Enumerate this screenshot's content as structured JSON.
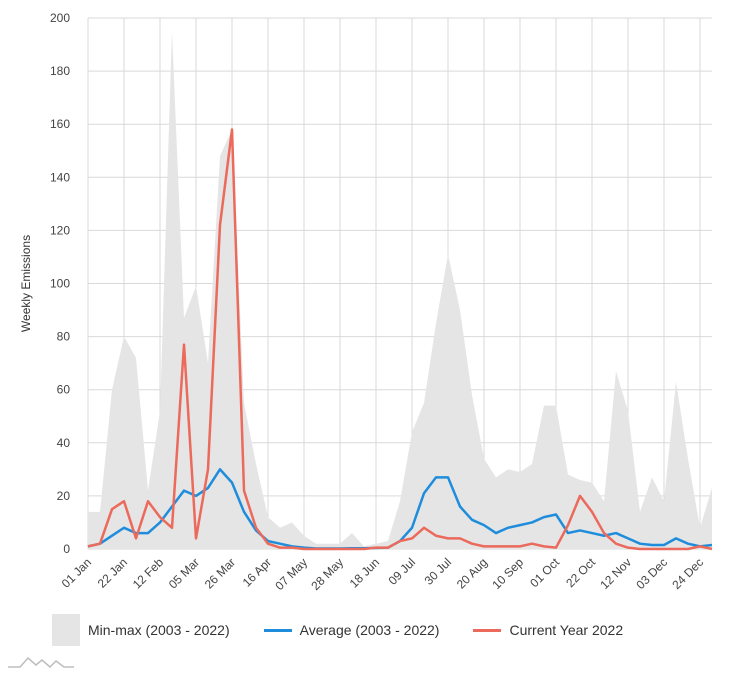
{
  "colors": {
    "range_fill": "#e5e5e5",
    "average": "#1f8ddb",
    "current": "#eb6a5c",
    "grid": "#d9d9d9"
  },
  "legend": {
    "range_label": "Min-max (2003 - 2022)",
    "average_label": "Average (2003 - 2022)",
    "current_label": "Current Year 2022"
  },
  "chart_data": {
    "type": "line",
    "title": "",
    "xlabel": "",
    "ylabel": "Weekly Emissions",
    "ylim": [
      0,
      200
    ],
    "yticks": [
      0,
      20,
      40,
      60,
      80,
      100,
      120,
      140,
      160,
      180,
      200
    ],
    "grid": true,
    "week_count": 52,
    "x_tick_labels": [
      {
        "week": 0,
        "label": "01 Jan"
      },
      {
        "week": 3,
        "label": "22 Jan"
      },
      {
        "week": 6,
        "label": "12 Feb"
      },
      {
        "week": 9,
        "label": "05 Mar"
      },
      {
        "week": 12,
        "label": "26 Mar"
      },
      {
        "week": 15,
        "label": "16 Apr"
      },
      {
        "week": 18,
        "label": "07 May"
      },
      {
        "week": 21,
        "label": "28 May"
      },
      {
        "week": 24,
        "label": "18 Jun"
      },
      {
        "week": 27,
        "label": "09 Jul"
      },
      {
        "week": 30,
        "label": "30 Jul"
      },
      {
        "week": 33,
        "label": "20 Aug"
      },
      {
        "week": 36,
        "label": "10 Sep"
      },
      {
        "week": 39,
        "label": "01 Oct"
      },
      {
        "week": 42,
        "label": "22 Oct"
      },
      {
        "week": 45,
        "label": "12 Nov"
      },
      {
        "week": 48,
        "label": "03 Dec"
      },
      {
        "week": 51,
        "label": "24 Dec"
      }
    ],
    "series": [
      {
        "name": "Min-max (2003 - 2022)",
        "kind": "range",
        "max": [
          14,
          14,
          60,
          80,
          72,
          22,
          52,
          195,
          87,
          99,
          70,
          148,
          158,
          55,
          32,
          12,
          8,
          10,
          5,
          2,
          2,
          2,
          6,
          1,
          2,
          3,
          18,
          44,
          55,
          85,
          111,
          90,
          58,
          34,
          27,
          30,
          29,
          32,
          54,
          54,
          28,
          26,
          25,
          18,
          67,
          52,
          14,
          27,
          18,
          63,
          34,
          8,
          23
        ],
        "min": [
          0,
          0,
          0,
          0,
          0,
          0,
          0,
          0,
          0,
          0,
          0,
          0,
          0,
          0,
          0,
          0,
          0,
          0,
          0,
          0,
          0,
          0,
          0,
          0,
          0,
          0,
          0,
          0,
          0,
          0,
          0,
          0,
          0,
          0,
          0,
          0,
          0,
          0,
          0,
          0,
          0,
          0,
          0,
          0,
          0,
          0,
          0,
          0,
          0,
          0,
          0,
          0,
          0
        ]
      },
      {
        "name": "Average (2003 - 2022)",
        "kind": "line",
        "values": [
          1,
          2,
          5,
          8,
          6,
          6,
          10,
          16,
          22,
          20,
          23,
          30,
          25,
          14,
          7,
          3,
          2,
          1,
          0.5,
          0.2,
          0.2,
          0.2,
          0.3,
          0.3,
          0.4,
          0.5,
          3,
          8,
          21,
          27,
          27,
          16,
          11,
          9,
          6,
          8,
          9,
          10,
          12,
          13,
          6,
          7,
          6,
          5,
          6,
          4,
          2,
          1.5,
          1.5,
          4,
          2,
          1,
          1.5
        ]
      },
      {
        "name": "Current Year 2022",
        "kind": "line",
        "values": [
          1,
          2,
          15,
          18,
          4,
          18,
          12,
          8,
          77,
          4,
          30,
          122,
          158,
          22,
          8,
          2,
          0.5,
          0.5,
          0,
          0,
          0,
          0,
          0,
          0,
          0.5,
          0.5,
          3,
          4,
          8,
          5,
          4,
          4,
          2,
          1,
          1,
          1,
          1,
          2,
          1,
          0.5,
          9,
          20,
          14,
          6,
          2,
          0.5,
          0,
          0,
          0,
          0,
          0,
          1,
          0
        ]
      }
    ]
  }
}
